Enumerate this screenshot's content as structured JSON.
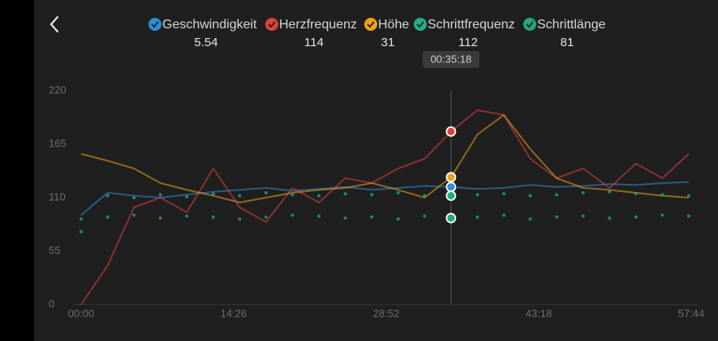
{
  "chart_data": {
    "type": "line",
    "cursor_label": "00:35:18",
    "x": [
      0,
      2.5,
      5,
      7.5,
      10,
      12.5,
      15,
      17.5,
      20,
      22.5,
      25,
      27.5,
      30,
      32.5,
      35,
      37.5,
      40,
      42.5,
      45,
      47.5,
      50,
      52.5,
      55,
      57.5
    ],
    "xlim": [
      0,
      57.733
    ],
    "xticks": [
      {
        "value": 0,
        "label": "00:00"
      },
      {
        "value": 14.433,
        "label": "14:26"
      },
      {
        "value": 28.867,
        "label": "28:52"
      },
      {
        "value": 43.3,
        "label": "43:18"
      },
      {
        "value": 57.733,
        "label": "57:44"
      }
    ],
    "ylim": [
      0,
      220
    ],
    "yticks": [
      0,
      55,
      110,
      165,
      220
    ],
    "cursor_index": 14,
    "series": [
      {
        "name": "Geschwindigkeit",
        "readout": 5.54,
        "color": "#2d8fd5",
        "style": "line",
        "values": [
          92,
          115,
          112,
          110,
          113,
          116,
          118,
          120,
          117,
          119,
          121,
          118,
          120,
          122,
          121,
          119,
          120,
          123,
          121,
          122,
          124,
          123,
          125,
          126
        ]
      },
      {
        "name": "Herzfrequenz",
        "readout": 114,
        "color": "#e0403f",
        "style": "line",
        "values": [
          0,
          40,
          100,
          110,
          95,
          140,
          100,
          85,
          120,
          105,
          130,
          125,
          140,
          150,
          178,
          200,
          195,
          150,
          130,
          140,
          120,
          145,
          130,
          155
        ]
      },
      {
        "name": "Höhe",
        "readout": 31,
        "color": "#f0a020",
        "style": "line",
        "values": [
          155,
          148,
          140,
          125,
          118,
          112,
          105,
          110,
          115,
          118,
          120,
          125,
          118,
          110,
          131,
          175,
          195,
          160,
          130,
          120,
          118,
          115,
          112,
          110
        ]
      },
      {
        "name": "Schrittfrequenz",
        "readout": 112,
        "color": "#1fae8a",
        "style": "dots",
        "values": [
          75,
          112,
          110,
          113,
          111,
          114,
          112,
          115,
          113,
          112,
          114,
          113,
          115,
          112,
          112,
          113,
          114,
          112,
          113,
          115,
          116,
          114,
          113,
          112
        ]
      },
      {
        "name": "Schrittlänge",
        "readout": 81,
        "color": "#22a87a",
        "style": "dots",
        "values": [
          88,
          90,
          92,
          89,
          91,
          90,
          88,
          90,
          92,
          91,
          89,
          90,
          88,
          91,
          89,
          90,
          92,
          88,
          90,
          91,
          89,
          90,
          92,
          91
        ]
      }
    ]
  }
}
